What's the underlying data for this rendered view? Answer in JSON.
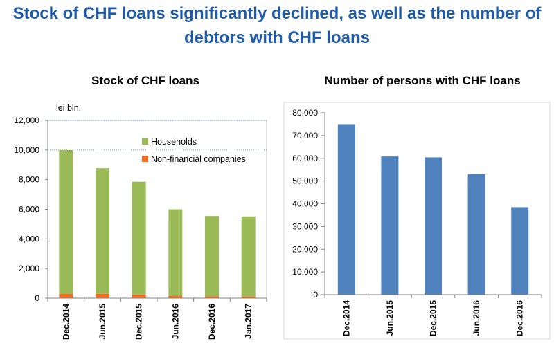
{
  "title_line1": "Stock of CHF loans significantly declined, as well as the number of",
  "title_line2": "debtors with CHF loans",
  "colors": {
    "title": "#1f5ba8",
    "households": "#9bbb59",
    "nonfinancial": "#f36c21",
    "persons": "#4f81bd"
  },
  "chart_data": [
    {
      "type": "bar",
      "stacked": true,
      "title": "Stock of CHF loans",
      "unit_label": "lei bln.",
      "categories": [
        "Dec.2014",
        "Jun.2015",
        "Dec.2015",
        "Jun.2016",
        "Dec.2016",
        "Jan.2017"
      ],
      "series": [
        {
          "name": "Non-financial companies",
          "color": "#f36c21",
          "values": [
            280,
            290,
            240,
            160,
            120,
            110
          ]
        },
        {
          "name": "Households",
          "color": "#9bbb59",
          "values": [
            9720,
            8480,
            7620,
            5840,
            5430,
            5410
          ]
        }
      ],
      "ylim": [
        0,
        12000
      ],
      "yticks": [
        "0",
        "2,000",
        "4,000",
        "6,000",
        "8,000",
        "10,000",
        "12,000"
      ],
      "legend_position": "top-right",
      "grid": "dotted horizontal"
    },
    {
      "type": "bar",
      "title": "Number of persons with CHF loans",
      "categories": [
        "Dec.2014",
        "Jun.2015",
        "Dec.2015",
        "Jun.2016",
        "Dec.2016"
      ],
      "series": [
        {
          "color": "#4f81bd",
          "values": [
            75000,
            60800,
            60400,
            53000,
            38500
          ]
        }
      ],
      "ylim": [
        0,
        80000
      ],
      "yticks": [
        "0",
        "10,000",
        "20,000",
        "30,000",
        "40,000",
        "50,000",
        "60,000",
        "70,000",
        "80,000"
      ],
      "grid": "none"
    }
  ]
}
